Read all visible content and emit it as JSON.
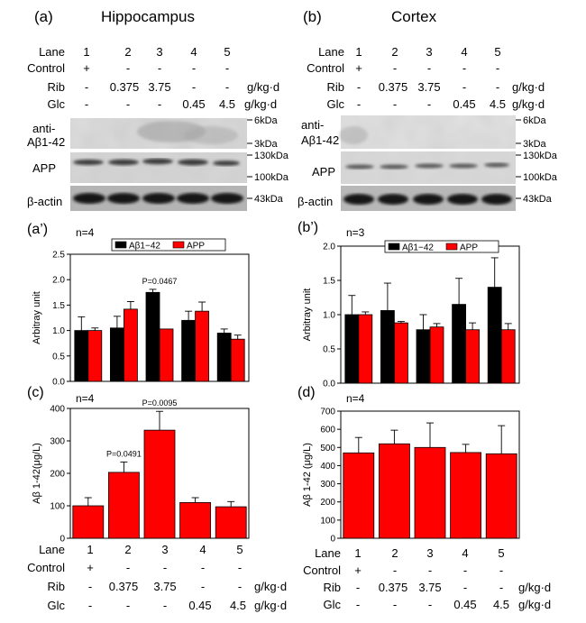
{
  "panels": {
    "a": {
      "label": "(a)",
      "title": "Hippocampus"
    },
    "b": {
      "label": "(b)",
      "title": "Cortex"
    },
    "a2": {
      "label": "(a’)",
      "n": "n=4"
    },
    "b2": {
      "label": "(b’)",
      "n": "n=3"
    },
    "c": {
      "label": "(c)",
      "n": "n=4"
    },
    "d": {
      "label": "(d)",
      "n": "n=4"
    }
  },
  "lanes": {
    "row_labels": [
      "Lane",
      "Control",
      "Rib",
      "Glc"
    ],
    "lane": [
      "1",
      "2",
      "3",
      "4",
      "5"
    ],
    "control": [
      "+",
      "-",
      "-",
      "-",
      "-"
    ],
    "rib": [
      "-",
      "0.375",
      "3.75",
      "-",
      "-"
    ],
    "glc": [
      "-",
      "-",
      "-",
      "0.45",
      "4.5"
    ],
    "unit": "g/kg·d"
  },
  "blot": {
    "row_abeta": [
      "anti-",
      "Aβ1-42"
    ],
    "row_app": "APP",
    "row_actin": "β-actin",
    "markers": [
      "6kDa",
      "3kDa",
      "130kDa",
      "100kDa",
      "43kDa"
    ]
  },
  "colors": {
    "abeta": "#000000",
    "app": "#ff0000",
    "bar": "#ff0000"
  },
  "chart_data": [
    {
      "id": "a2",
      "type": "bar",
      "categories": [
        "1",
        "2",
        "3",
        "4",
        "5"
      ],
      "series": [
        {
          "name": "Aβ1−42",
          "values": [
            1.0,
            1.05,
            1.75,
            1.2,
            0.95
          ],
          "errors": [
            0.27,
            0.23,
            0.06,
            0.18,
            0.08
          ]
        },
        {
          "name": "APP",
          "values": [
            1.0,
            1.42,
            1.03,
            1.38,
            0.83
          ],
          "errors": [
            0.05,
            0.15,
            0.0,
            0.18,
            0.08
          ]
        }
      ],
      "ylabel": "Arbitray unit",
      "ylim": [
        0,
        2.5
      ],
      "yticks": [
        "0.0",
        "0.5",
        "1.0",
        "1.5",
        "2.0",
        "2.5"
      ],
      "annotations": [
        {
          "text": "P=0.0467",
          "category": "3"
        }
      ],
      "legend": "top-center"
    },
    {
      "id": "b2",
      "type": "bar",
      "categories": [
        "1",
        "2",
        "3",
        "4",
        "5"
      ],
      "series": [
        {
          "name": "Aβ1−42",
          "values": [
            1.0,
            1.06,
            0.78,
            1.15,
            1.4
          ],
          "errors": [
            0.28,
            0.4,
            0.22,
            0.38,
            0.43
          ]
        },
        {
          "name": "APP",
          "values": [
            1.0,
            0.88,
            0.82,
            0.78,
            0.78
          ],
          "errors": [
            0.04,
            0.02,
            0.05,
            0.1,
            0.09
          ]
        }
      ],
      "ylabel": "Arbitray unit",
      "ylim": [
        0,
        2.0
      ],
      "yticks": [
        "0.0",
        "0.5",
        "1.0",
        "1.5",
        "2.0"
      ],
      "legend": "top-center"
    },
    {
      "id": "c",
      "type": "bar",
      "categories": [
        "1",
        "2",
        "3",
        "4",
        "5"
      ],
      "series": [
        {
          "name": "",
          "values": [
            100,
            203,
            333,
            110,
            97
          ],
          "errors": [
            25,
            32,
            58,
            15,
            16
          ]
        }
      ],
      "ylabel": "Aβ 1-42(μg/L)",
      "ylim": [
        0,
        400
      ],
      "yticks": [
        "0",
        "100",
        "200",
        "300",
        "400"
      ],
      "annotations": [
        {
          "text": "P=0.0491",
          "category": "2"
        },
        {
          "text": "P=0.0095",
          "category": "3"
        }
      ]
    },
    {
      "id": "d",
      "type": "bar",
      "categories": [
        "1",
        "2",
        "3",
        "4",
        "5"
      ],
      "series": [
        {
          "name": "",
          "values": [
            470,
            520,
            500,
            472,
            465
          ],
          "errors": [
            85,
            75,
            135,
            45,
            155
          ]
        }
      ],
      "ylabel": "Aβ 1-42 (μg/L)",
      "ylim": [
        0,
        700
      ],
      "yticks": [
        "0",
        "100",
        "200",
        "300",
        "400",
        "500",
        "600",
        "700"
      ]
    }
  ]
}
